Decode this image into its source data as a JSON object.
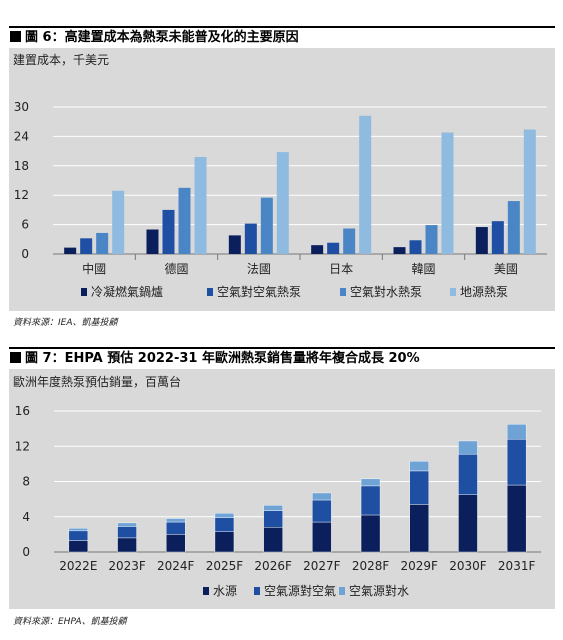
{
  "figures": [
    {
      "title": "圖 6：高建置成本為熱泵未能普及化的主要原因",
      "unit": "建置成本，千美元",
      "source": "資料來源：IEA、凱基投顧",
      "chart_data": {
        "type": "bar",
        "categories": [
          "中國",
          "德國",
          "法國",
          "日本",
          "韓國",
          "美國"
        ],
        "series": [
          {
            "name": "冷凝燃氣鍋爐",
            "values": [
              1.3,
              5.0,
              3.8,
              1.8,
              1.4,
              5.5
            ]
          },
          {
            "name": "空氣對空氣熱泵",
            "values": [
              3.2,
              9.0,
              6.2,
              2.3,
              2.8,
              6.7
            ]
          },
          {
            "name": "空氣對水熱泵",
            "values": [
              4.3,
              13.5,
              11.5,
              5.2,
              5.9,
              10.8
            ]
          },
          {
            "name": "地源熱泵",
            "values": [
              12.9,
              19.8,
              20.8,
              28.2,
              24.8,
              25.4
            ]
          }
        ],
        "colors": [
          "#0a1f5c",
          "#1f4fa3",
          "#4a86c5",
          "#8fbbe0"
        ],
        "ylim": [
          0,
          30
        ],
        "yticks": [
          0,
          6,
          12,
          18,
          24,
          30
        ],
        "grid": true,
        "legend": "bottom"
      }
    },
    {
      "title": "圖 7：EHPA 預估 2022-31 年歐洲熱泵銷售量將年複合成長 20%",
      "unit": "歐洲年度熱泵預估銷量，百萬台",
      "source": "資料來源：EHPA、凱基投顧",
      "chart_data": {
        "type": "bar",
        "stacked": true,
        "categories": [
          "2022E",
          "2023F",
          "2024F",
          "2025F",
          "2026F",
          "2027F",
          "2028F",
          "2029F",
          "2030F",
          "2031F"
        ],
        "series": [
          {
            "name": "水源",
            "values": [
              1.3,
              1.6,
              2.0,
              2.3,
              2.8,
              3.4,
              4.2,
              5.4,
              6.5,
              7.6
            ]
          },
          {
            "name": "空氣源對空氣",
            "values": [
              1.1,
              1.3,
              1.4,
              1.6,
              1.9,
              2.5,
              3.3,
              3.8,
              4.6,
              5.2
            ]
          },
          {
            "name": "空氣源對水",
            "values": [
              0.3,
              0.4,
              0.4,
              0.5,
              0.6,
              0.8,
              0.8,
              1.1,
              1.5,
              1.7
            ]
          }
        ],
        "colors": [
          "#0a1f5c",
          "#1f4fa3",
          "#6fa3d6"
        ],
        "ylim": [
          0,
          16
        ],
        "yticks": [
          0,
          4,
          8,
          12,
          16
        ],
        "grid": true,
        "legend": "bottom"
      }
    }
  ]
}
